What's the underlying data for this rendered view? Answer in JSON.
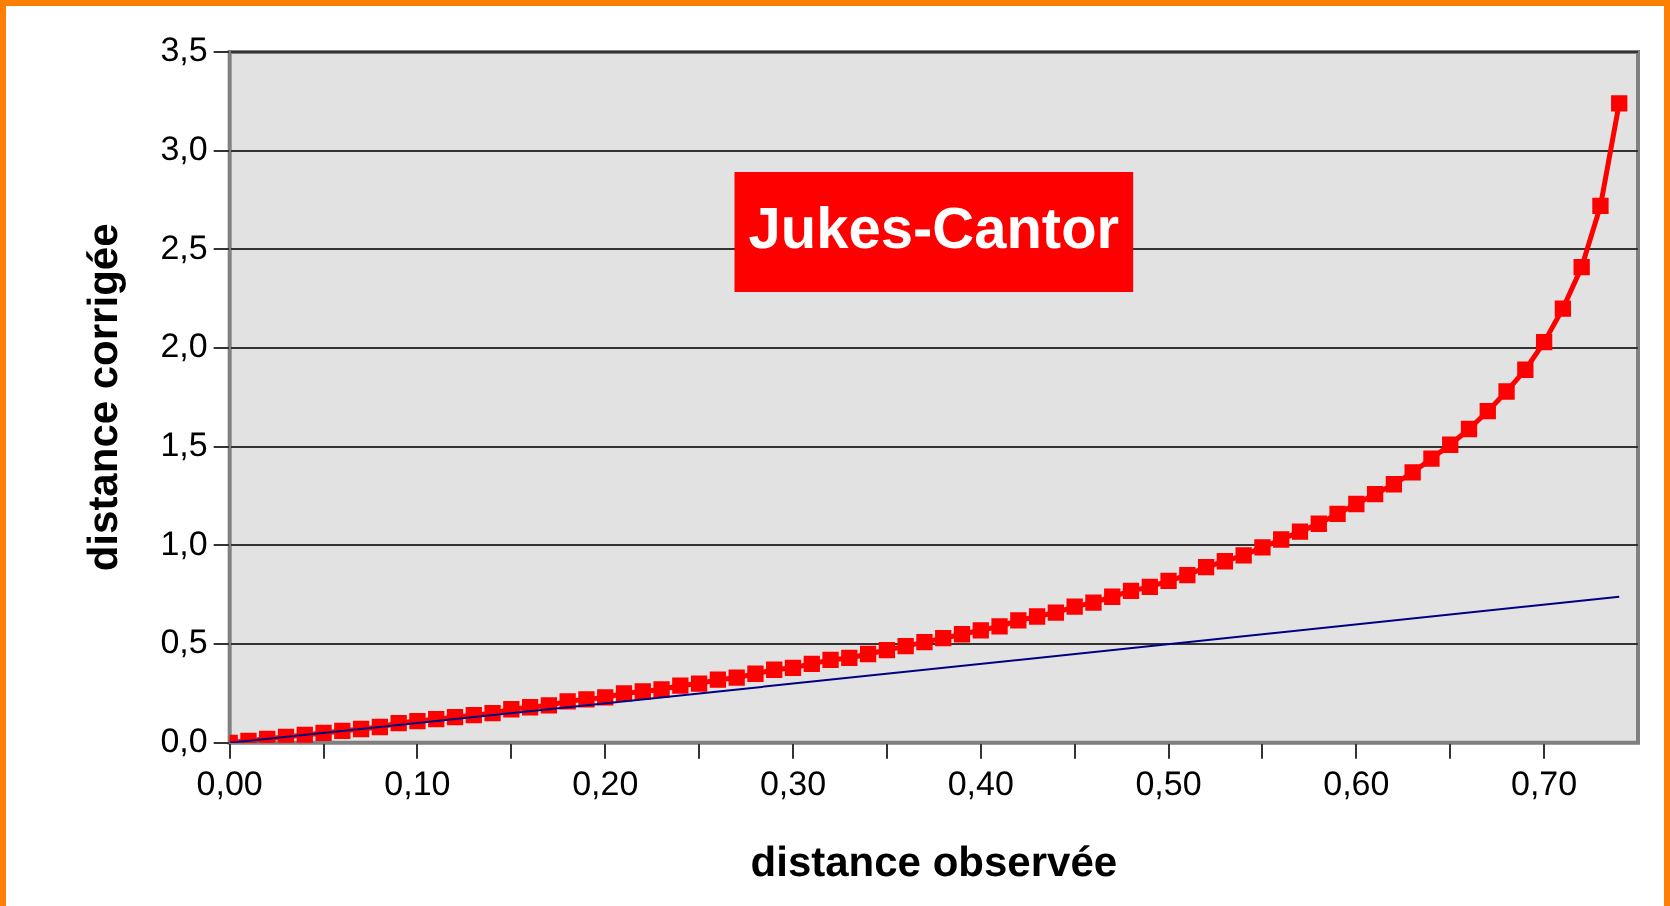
{
  "chart_data": {
    "type": "line",
    "xlabel": "distance observée",
    "ylabel": "distance corrigée",
    "annotations": [
      "Jukes-Cantor"
    ],
    "xlim": [
      0,
      0.75
    ],
    "xticks": [
      {
        "value": 0,
        "label": "0,00"
      },
      {
        "value": 0.05,
        "label": null
      },
      {
        "value": 0.1,
        "label": "0,10"
      },
      {
        "value": 0.15,
        "label": null
      },
      {
        "value": 0.2,
        "label": "0,20"
      },
      {
        "value": 0.25,
        "label": null
      },
      {
        "value": 0.3,
        "label": "0,30"
      },
      {
        "value": 0.35,
        "label": null
      },
      {
        "value": 0.4,
        "label": "0,40"
      },
      {
        "value": 0.45,
        "label": null
      },
      {
        "value": 0.5,
        "label": "0,50"
      },
      {
        "value": 0.55,
        "label": null
      },
      {
        "value": 0.6,
        "label": "0,60"
      },
      {
        "value": 0.65,
        "label": null
      },
      {
        "value": 0.7,
        "label": "0,70"
      }
    ],
    "ylim": [
      0,
      3.5
    ],
    "yticks": [
      {
        "value": 0,
        "label": "0,0"
      },
      {
        "value": 0.5,
        "label": "0,5"
      },
      {
        "value": 1,
        "label": "1,0"
      },
      {
        "value": 1.5,
        "label": "1,5"
      },
      {
        "value": 2,
        "label": "2,0"
      },
      {
        "value": 2.5,
        "label": "2,5"
      },
      {
        "value": 3,
        "label": "3,0"
      },
      {
        "value": 3.5,
        "label": "3,5"
      }
    ],
    "grid": "y",
    "legend": false,
    "series": [
      {
        "color": "#000080",
        "marker": "none",
        "x": [
          0,
          0.74
        ],
        "values": [
          0,
          0.74
        ]
      },
      {
        "color": "#ff0000",
        "marker": "square",
        "x": [
          0,
          0.01,
          0.02,
          0.03,
          0.04,
          0.05,
          0.06,
          0.07,
          0.08,
          0.09,
          0.1,
          0.11,
          0.12,
          0.13,
          0.14,
          0.15,
          0.16,
          0.17,
          0.18,
          0.19,
          0.2,
          0.21,
          0.22,
          0.23,
          0.24,
          0.25,
          0.26,
          0.27,
          0.28,
          0.29,
          0.3,
          0.31,
          0.32,
          0.33,
          0.34,
          0.35,
          0.36,
          0.37,
          0.38,
          0.39,
          0.4,
          0.41,
          0.42,
          0.43,
          0.44,
          0.45,
          0.46,
          0.47,
          0.48,
          0.49,
          0.5,
          0.51,
          0.52,
          0.53,
          0.54,
          0.55,
          0.56,
          0.57,
          0.58,
          0.59,
          0.6,
          0.61,
          0.62,
          0.63,
          0.64,
          0.65,
          0.66,
          0.67,
          0.68,
          0.69,
          0.7,
          0.71,
          0.72,
          0.73,
          0.74
        ],
        "values": [
          0,
          0.01,
          0.02,
          0.03,
          0.04,
          0.05,
          0.06,
          0.07,
          0.08,
          0.1,
          0.11,
          0.12,
          0.13,
          0.14,
          0.15,
          0.17,
          0.18,
          0.19,
          0.21,
          0.22,
          0.23,
          0.25,
          0.26,
          0.27,
          0.29,
          0.3,
          0.32,
          0.33,
          0.35,
          0.37,
          0.38,
          0.4,
          0.42,
          0.43,
          0.45,
          0.47,
          0.49,
          0.51,
          0.53,
          0.55,
          0.57,
          0.59,
          0.62,
          0.64,
          0.66,
          0.69,
          0.71,
          0.74,
          0.77,
          0.79,
          0.82,
          0.85,
          0.89,
          0.92,
          0.95,
          0.99,
          1.03,
          1.07,
          1.11,
          1.16,
          1.21,
          1.26,
          1.31,
          1.37,
          1.44,
          1.51,
          1.59,
          1.68,
          1.78,
          1.89,
          2.03,
          2.2,
          2.41,
          2.72,
          3.24
        ]
      }
    ]
  }
}
